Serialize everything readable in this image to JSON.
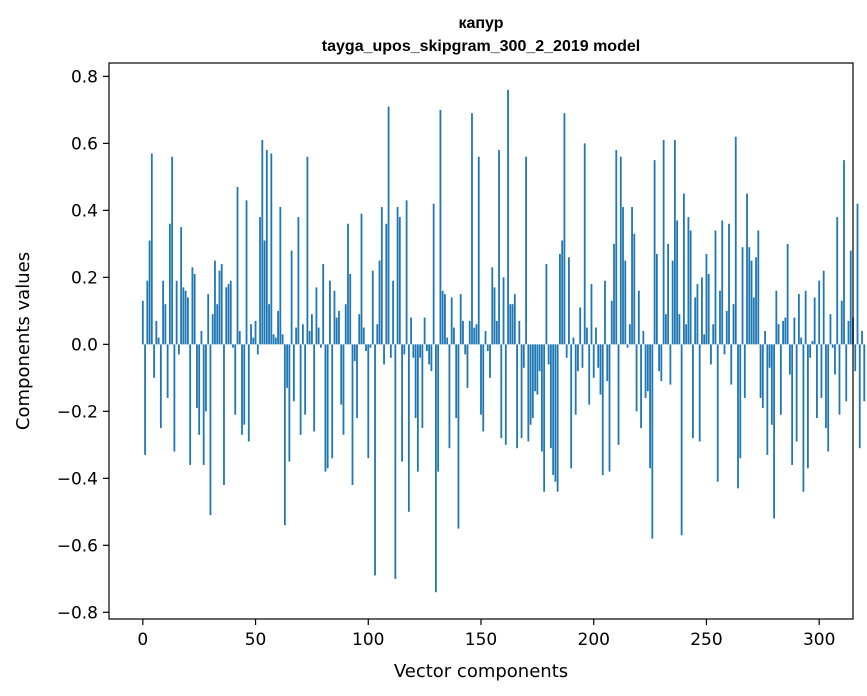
{
  "chart_data": {
    "type": "bar",
    "title": "капур",
    "subtitle": "tayga_upos_skipgram_300_2_2019 model",
    "xlabel": "Vector components",
    "ylabel": "Components values",
    "xlim": [
      -15,
      315
    ],
    "ylim": [
      -0.82,
      0.84
    ],
    "xticks": [
      0,
      50,
      100,
      150,
      200,
      250,
      300
    ],
    "xtick_labels": [
      "0",
      "50",
      "100",
      "150",
      "200",
      "250",
      "300"
    ],
    "yticks": [
      -0.8,
      -0.6,
      -0.4,
      -0.2,
      0.0,
      0.2,
      0.4,
      0.6,
      0.8
    ],
    "ytick_labels": [
      "−0.8",
      "−0.6",
      "−0.4",
      "−0.2",
      "0.0",
      "0.2",
      "0.4",
      "0.6",
      "0.8"
    ],
    "grid": false,
    "bar_color": "#1f77b4",
    "values": [
      0.13,
      -0.33,
      0.19,
      0.31,
      0.57,
      -0.1,
      0.07,
      0.02,
      -0.25,
      0.19,
      0.12,
      -0.16,
      0.36,
      0.56,
      -0.32,
      0.19,
      -0.03,
      0.35,
      0.17,
      0.16,
      0.14,
      -0.36,
      0.23,
      0.21,
      -0.19,
      -0.27,
      0.04,
      -0.36,
      -0.2,
      0.15,
      -0.51,
      0.09,
      0.25,
      0.12,
      0.22,
      0.24,
      -0.42,
      0.17,
      0.18,
      0.19,
      -0.01,
      -0.21,
      0.47,
      0.04,
      -0.27,
      -0.24,
      0.43,
      -0.29,
      0.06,
      0.02,
      0.07,
      -0.03,
      0.38,
      0.61,
      0.31,
      0.58,
      0.12,
      0.57,
      0.03,
      0.02,
      0.1,
      0.41,
      0.03,
      -0.54,
      -0.13,
      -0.35,
      0.28,
      -0.17,
      0.05,
      0.38,
      -0.27,
      0.06,
      -0.21,
      0.56,
      0.04,
      0.09,
      -0.26,
      0.17,
      0.05,
      -0.01,
      0.24,
      -0.38,
      -0.37,
      0.19,
      -0.34,
      0.16,
      0.08,
      0.1,
      -0.18,
      -0.27,
      0.12,
      0.36,
      0.21,
      -0.42,
      -0.05,
      -0.22,
      0.09,
      0.39,
      0.05,
      -0.02,
      -0.34,
      -0.01,
      0.22,
      -0.69,
      0.06,
      0.25,
      0.41,
      -0.06,
      0.36,
      0.71,
      -0.04,
      0.19,
      -0.7,
      0.41,
      0.38,
      -0.35,
      -0.03,
      0.43,
      -0.5,
      0.08,
      -0.04,
      -0.22,
      -0.38,
      -0.04,
      -0.25,
      0.08,
      -0.02,
      -0.06,
      -0.08,
      0.42,
      -0.74,
      -0.38,
      0.7,
      0.16,
      0.15,
      0.02,
      -0.31,
      0.14,
      0.05,
      -0.22,
      -0.55,
      0.15,
      0.07,
      -0.03,
      -0.13,
      0.07,
      0.69,
      0.05,
      0.06,
      0.56,
      -0.21,
      -0.26,
      0.04,
      -0.02,
      -0.1,
      0.23,
      0.17,
      0.07,
      0.58,
      -0.28,
      0.2,
      -0.3,
      0.76,
      0.12,
      0.12,
      0.15,
      -0.31,
      0.07,
      -0.28,
      -0.07,
      0.56,
      -0.29,
      -0.24,
      -0.22,
      -0.14,
      -0.15,
      -0.08,
      -0.32,
      -0.44,
      0.24,
      -0.06,
      -0.31,
      -0.39,
      -0.41,
      -0.44,
      0.27,
      0.31,
      0.69,
      -0.04,
      0.26,
      -0.37,
      0.02,
      -0.21,
      -0.08,
      0.11,
      -0.07,
      0.6,
      0.05,
      -0.18,
      0.18,
      -0.1,
      0.05,
      -0.07,
      -0.15,
      -0.39,
      0.19,
      -0.11,
      -0.38,
      0.13,
      0.3,
      0.58,
      -0.3,
      0.56,
      0.41,
      0.25,
      -0.01,
      0.06,
      0.41,
      0.33,
      -0.2,
      0.16,
      -0.25,
      0.04,
      -0.16,
      -0.14,
      -0.37,
      -0.58,
      0.55,
      0.27,
      -0.08,
      -0.11,
      0.61,
      0.09,
      0.3,
      -0.12,
      0.25,
      0.61,
      0.37,
      0.09,
      -0.57,
      0.45,
      0.06,
      0.38,
      0.34,
      -0.28,
      0.14,
      0.18,
      -0.29,
      0.2,
      0.03,
      0.27,
      0.21,
      -0.06,
      0.06,
      0.34,
      -0.41,
      0.16,
      0.37,
      -0.03,
      0.1,
      0.36,
      -0.12,
      0.12,
      0.62,
      -0.43,
      -0.34,
      0.29,
      -0.16,
      0.45,
      0.29,
      0.25,
      0.14,
      0.26,
      0.34,
      -0.16,
      -0.19,
      0.04,
      -0.33,
      -0.07,
      -0.24,
      -0.52,
      0.16,
      0.06,
      -0.21,
      0.07,
      0.08,
      0.3,
      -0.09,
      -0.36,
      0.08,
      -0.29,
      0.15,
      0.02,
      -0.44,
      0.16,
      -0.37,
      -0.04,
      0.01,
      0.14,
      -0.22,
      0.19,
      -0.16,
      0.22,
      -0.25,
      -0.32,
      0.09,
      -0.01,
      -0.09,
      0.38,
      -0.21,
      0.13,
      0.55,
      -0.17,
      0.07,
      0.28,
      0.08,
      -0.08,
      0.42,
      -0.31,
      0.04,
      -0.17
    ]
  }
}
